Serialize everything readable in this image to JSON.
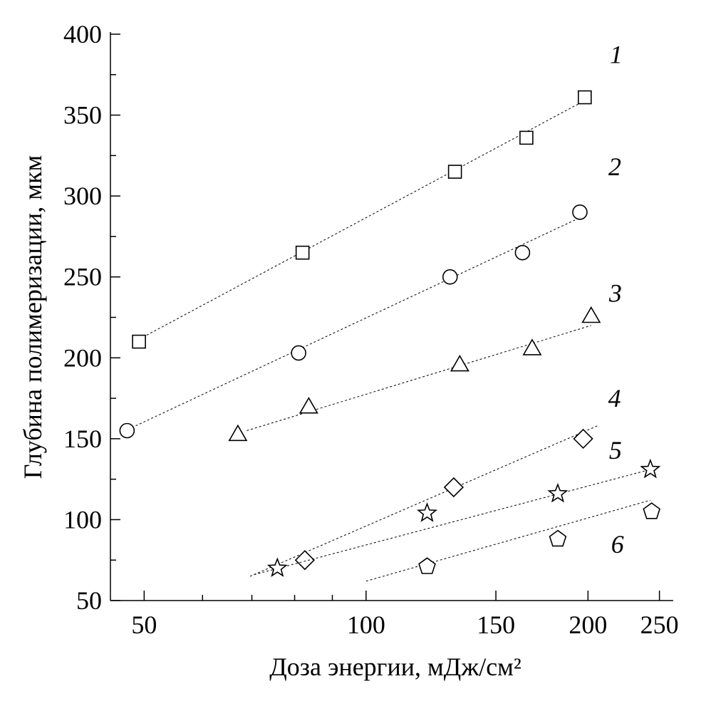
{
  "chart_data": {
    "type": "scatter",
    "x_label": "Доза энергии, мДж/см²",
    "y_label": "Глубина полимеризации, мкм",
    "x_log": true,
    "xlim": [
      45,
      261
    ],
    "xticks": [
      50,
      100,
      150,
      200,
      250
    ],
    "xminorticks": [
      60,
      70,
      80,
      90
    ],
    "ylim": [
      50,
      400
    ],
    "yticks": [
      50,
      100,
      150,
      200,
      250,
      300,
      350,
      400
    ],
    "yminorticks": [
      75,
      125,
      175,
      225,
      275,
      325,
      375
    ],
    "series": [
      {
        "name": "1",
        "marker": "square",
        "color": "#000000",
        "x": [
          49.2,
          82,
          132,
          165,
          198
        ],
        "values": [
          210,
          265,
          315,
          336,
          361
        ],
        "fit_x": [
          50.4,
          198
        ],
        "fit_y": [
          214,
          359
        ]
      },
      {
        "name": "2",
        "marker": "circle",
        "color": "#000000",
        "x": [
          47.4,
          81,
          130,
          163,
          195
        ],
        "values": [
          155,
          203,
          250,
          265,
          290
        ],
        "fit_x": [
          48.7,
          198
        ],
        "fit_y": [
          158,
          288
        ]
      },
      {
        "name": "3",
        "marker": "triangle",
        "color": "#000000",
        "x": [
          67,
          83.6,
          134,
          168,
          202
        ],
        "values": [
          152,
          169,
          195,
          205,
          225
        ],
        "fit_x": [
          68.9,
          202
        ],
        "fit_y": [
          155,
          220
        ]
      },
      {
        "name": "4",
        "marker": "diamond",
        "color": "#000000",
        "x": [
          82.6,
          131.5,
          197
        ],
        "values": [
          75,
          120,
          150
        ],
        "fit_x": [
          69.6,
          206
        ],
        "fit_y": [
          65,
          158
        ]
      },
      {
        "name": "5",
        "marker": "star",
        "color": "#000000",
        "x": [
          75.8,
          121,
          182,
          243
        ],
        "values": [
          70,
          104,
          116,
          131
        ],
        "fit_x": [
          70.5,
          243
        ],
        "fit_y": [
          66,
          131
        ]
      },
      {
        "name": "6",
        "marker": "pentagon",
        "color": "#000000",
        "x": [
          121,
          182,
          244
        ],
        "values": [
          71,
          88,
          105
        ],
        "fit_x": [
          100,
          243
        ],
        "fit_y": [
          62,
          112
        ]
      }
    ]
  }
}
